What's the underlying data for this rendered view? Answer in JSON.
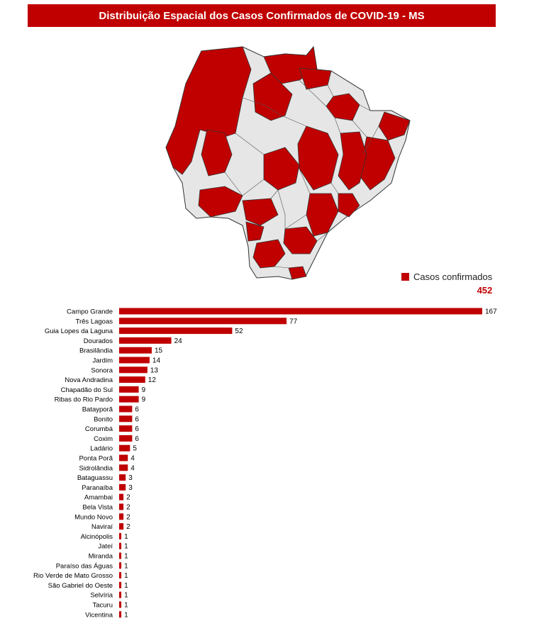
{
  "title": "Distribuição Espacial dos Casos Confirmados de COVID-19 - MS",
  "legend": {
    "label": "Casos confirmados",
    "total": "452"
  },
  "colors": {
    "accent": "#c00000",
    "map_empty": "#e6e6e6",
    "map_border": "#333333"
  },
  "chart_data": {
    "type": "bar",
    "orientation": "horizontal",
    "categories": [
      "Campo Grande",
      "Três Lagoas",
      "Guia Lopes da Laguna",
      "Dourados",
      "Brasilândia",
      "Jardim",
      "Sonora",
      "Nova Andradina",
      "Chapadão do Sul",
      "Ribas do Rio Pardo",
      "Batayporã",
      "Bonito",
      "Corumbá",
      "Coxim",
      "Ladário",
      "Ponta Porã",
      "Sidrolândia",
      "Bataguassu",
      "Paranaíba",
      "Amambai",
      "Bela Vista",
      "Mundo Novo",
      "Naviraí",
      "Alcinópolis",
      "Jateí",
      "Miranda",
      "Paraíso das Águas",
      "Rio Verde de Mato Grosso",
      "São Gabriel do Oeste",
      "Selvíria",
      "Tacuru",
      "Vicentina"
    ],
    "values": [
      167,
      77,
      52,
      24,
      15,
      14,
      13,
      12,
      9,
      9,
      6,
      6,
      6,
      6,
      5,
      4,
      4,
      3,
      3,
      2,
      2,
      2,
      2,
      1,
      1,
      1,
      1,
      1,
      1,
      1,
      1,
      1
    ],
    "xlim": [
      0,
      167
    ]
  }
}
